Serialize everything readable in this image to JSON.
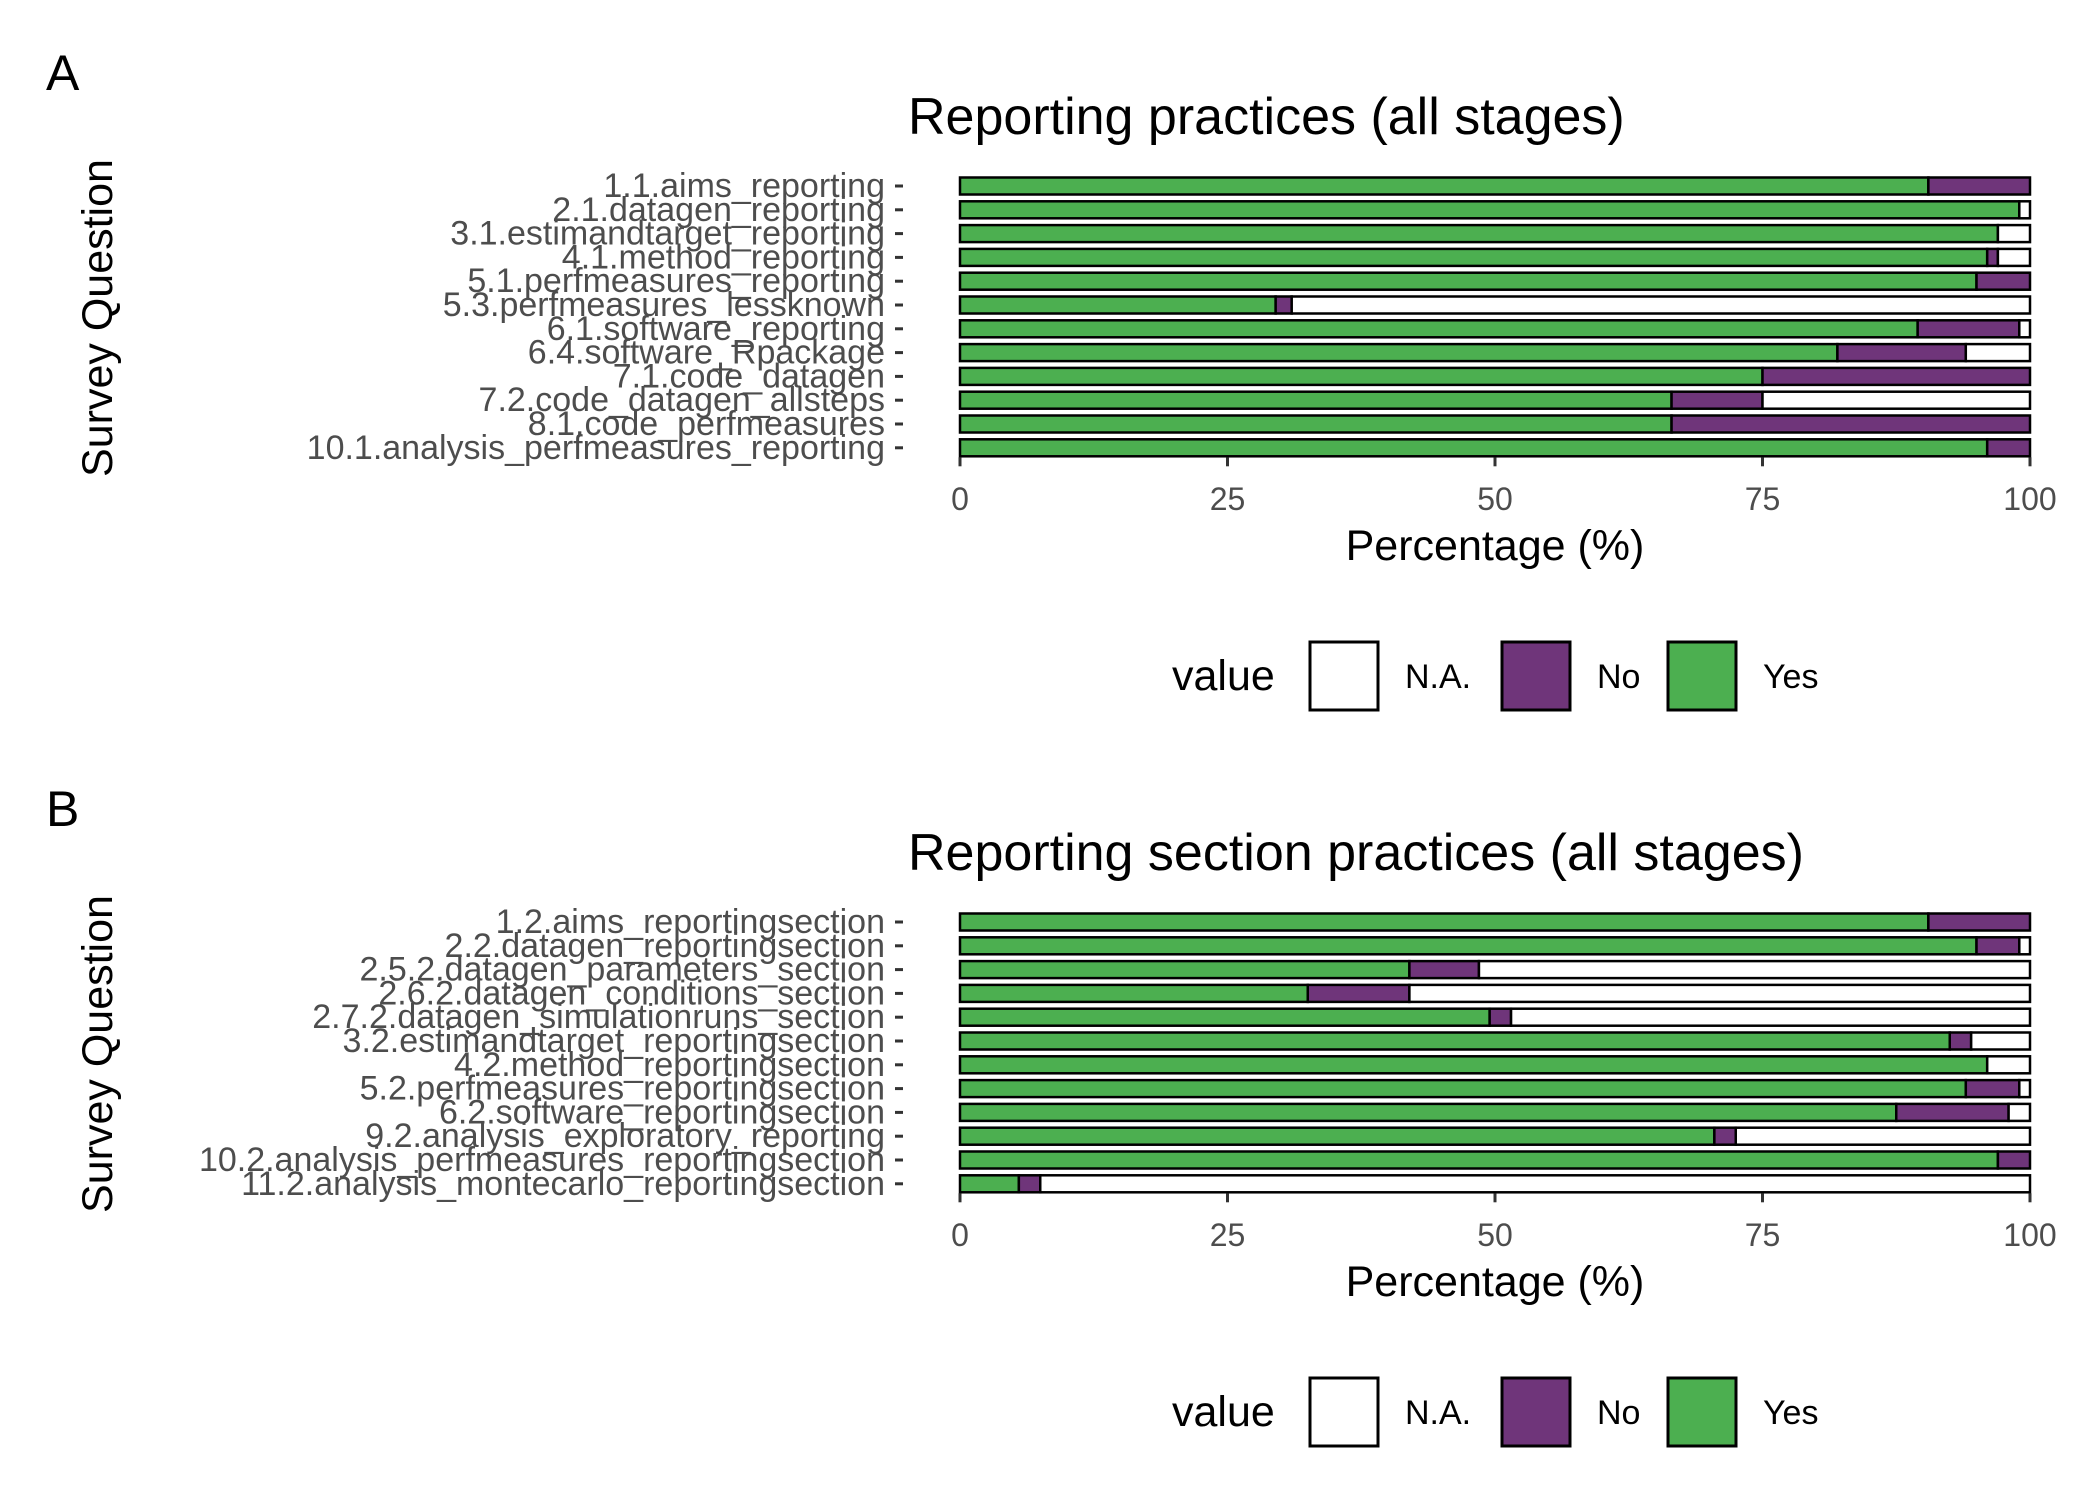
{
  "colors": {
    "N.A.": "#ffffff",
    "No": "#6f357a",
    "Yes": "#4caf50"
  },
  "legend": {
    "title": "value",
    "items": [
      "N.A.",
      "No",
      "Yes"
    ]
  },
  "chart_data": [
    {
      "panel_label": "A",
      "type": "bar",
      "orientation": "horizontal",
      "stacked": true,
      "title": "Reporting practices (all stages)",
      "xlabel": "Percentage (%)",
      "ylabel": "Survey Question",
      "xlim": [
        0,
        100
      ],
      "xticks": [
        0,
        25,
        50,
        75,
        100
      ],
      "grid": false,
      "legend_position": "bottom",
      "categories": [
        "1.1.aims_reporting",
        "2.1.datagen_reporting",
        "3.1.estimandtarget_reporting",
        "4.1.method_reporting",
        "5.1.perfmeasures_reporting",
        "5.3.perfmeasures_lessknown",
        "6.1.software_reporting",
        "6.4.software_Rpackage",
        "7.1.code_datagen",
        "7.2.code_datagen_allsteps",
        "8.1.code_perfmeasures",
        "10.1.analysis_perfmeasures_reporting"
      ],
      "series": [
        {
          "name": "Yes",
          "values": [
            90.5,
            99,
            97,
            96,
            95,
            29.5,
            89.5,
            82,
            75,
            66.5,
            66.5,
            96
          ]
        },
        {
          "name": "No",
          "values": [
            9.5,
            0,
            0,
            1,
            5,
            1.5,
            9.5,
            12,
            25,
            8.5,
            33.5,
            4
          ]
        },
        {
          "name": "N.A.",
          "values": [
            0,
            1,
            3,
            3,
            0,
            69,
            1,
            6,
            0,
            25,
            0,
            0
          ]
        }
      ]
    },
    {
      "panel_label": "B",
      "type": "bar",
      "orientation": "horizontal",
      "stacked": true,
      "title": "Reporting section practices (all stages)",
      "xlabel": "Percentage (%)",
      "ylabel": "Survey Question",
      "xlim": [
        0,
        100
      ],
      "xticks": [
        0,
        25,
        50,
        75,
        100
      ],
      "grid": false,
      "legend_position": "bottom",
      "categories": [
        "1.2.aims_reportingsection",
        "2.2.datagen_reportingsection",
        "2.5.2.datagen_parameters_section",
        "2.6.2.datagen_conditions_section",
        "2.7.2.datagen_simulationruns_section",
        "3.2.estimandtarget_reportingsection",
        "4.2.method_reportingsection",
        "5.2.perfmeasures_reportingsection",
        "6.2.software_reportingsection",
        "9.2.analysis_exploratory_reporting",
        "10.2.analysis_perfmeasures_reportingsection",
        "11.2.analysis_montecarlo_reportingsection"
      ],
      "series": [
        {
          "name": "Yes",
          "values": [
            90.5,
            95,
            42,
            32.5,
            49.5,
            92.5,
            96,
            94,
            87.5,
            70.5,
            97,
            5.5
          ]
        },
        {
          "name": "No",
          "values": [
            9.5,
            4,
            6.5,
            9.5,
            2,
            2,
            0,
            5,
            10.5,
            2,
            3,
            2
          ]
        },
        {
          "name": "N.A.",
          "values": [
            0,
            1,
            51.5,
            58,
            48.5,
            5.5,
            4,
            1,
            2,
            27.5,
            0,
            92.5
          ]
        }
      ]
    }
  ]
}
